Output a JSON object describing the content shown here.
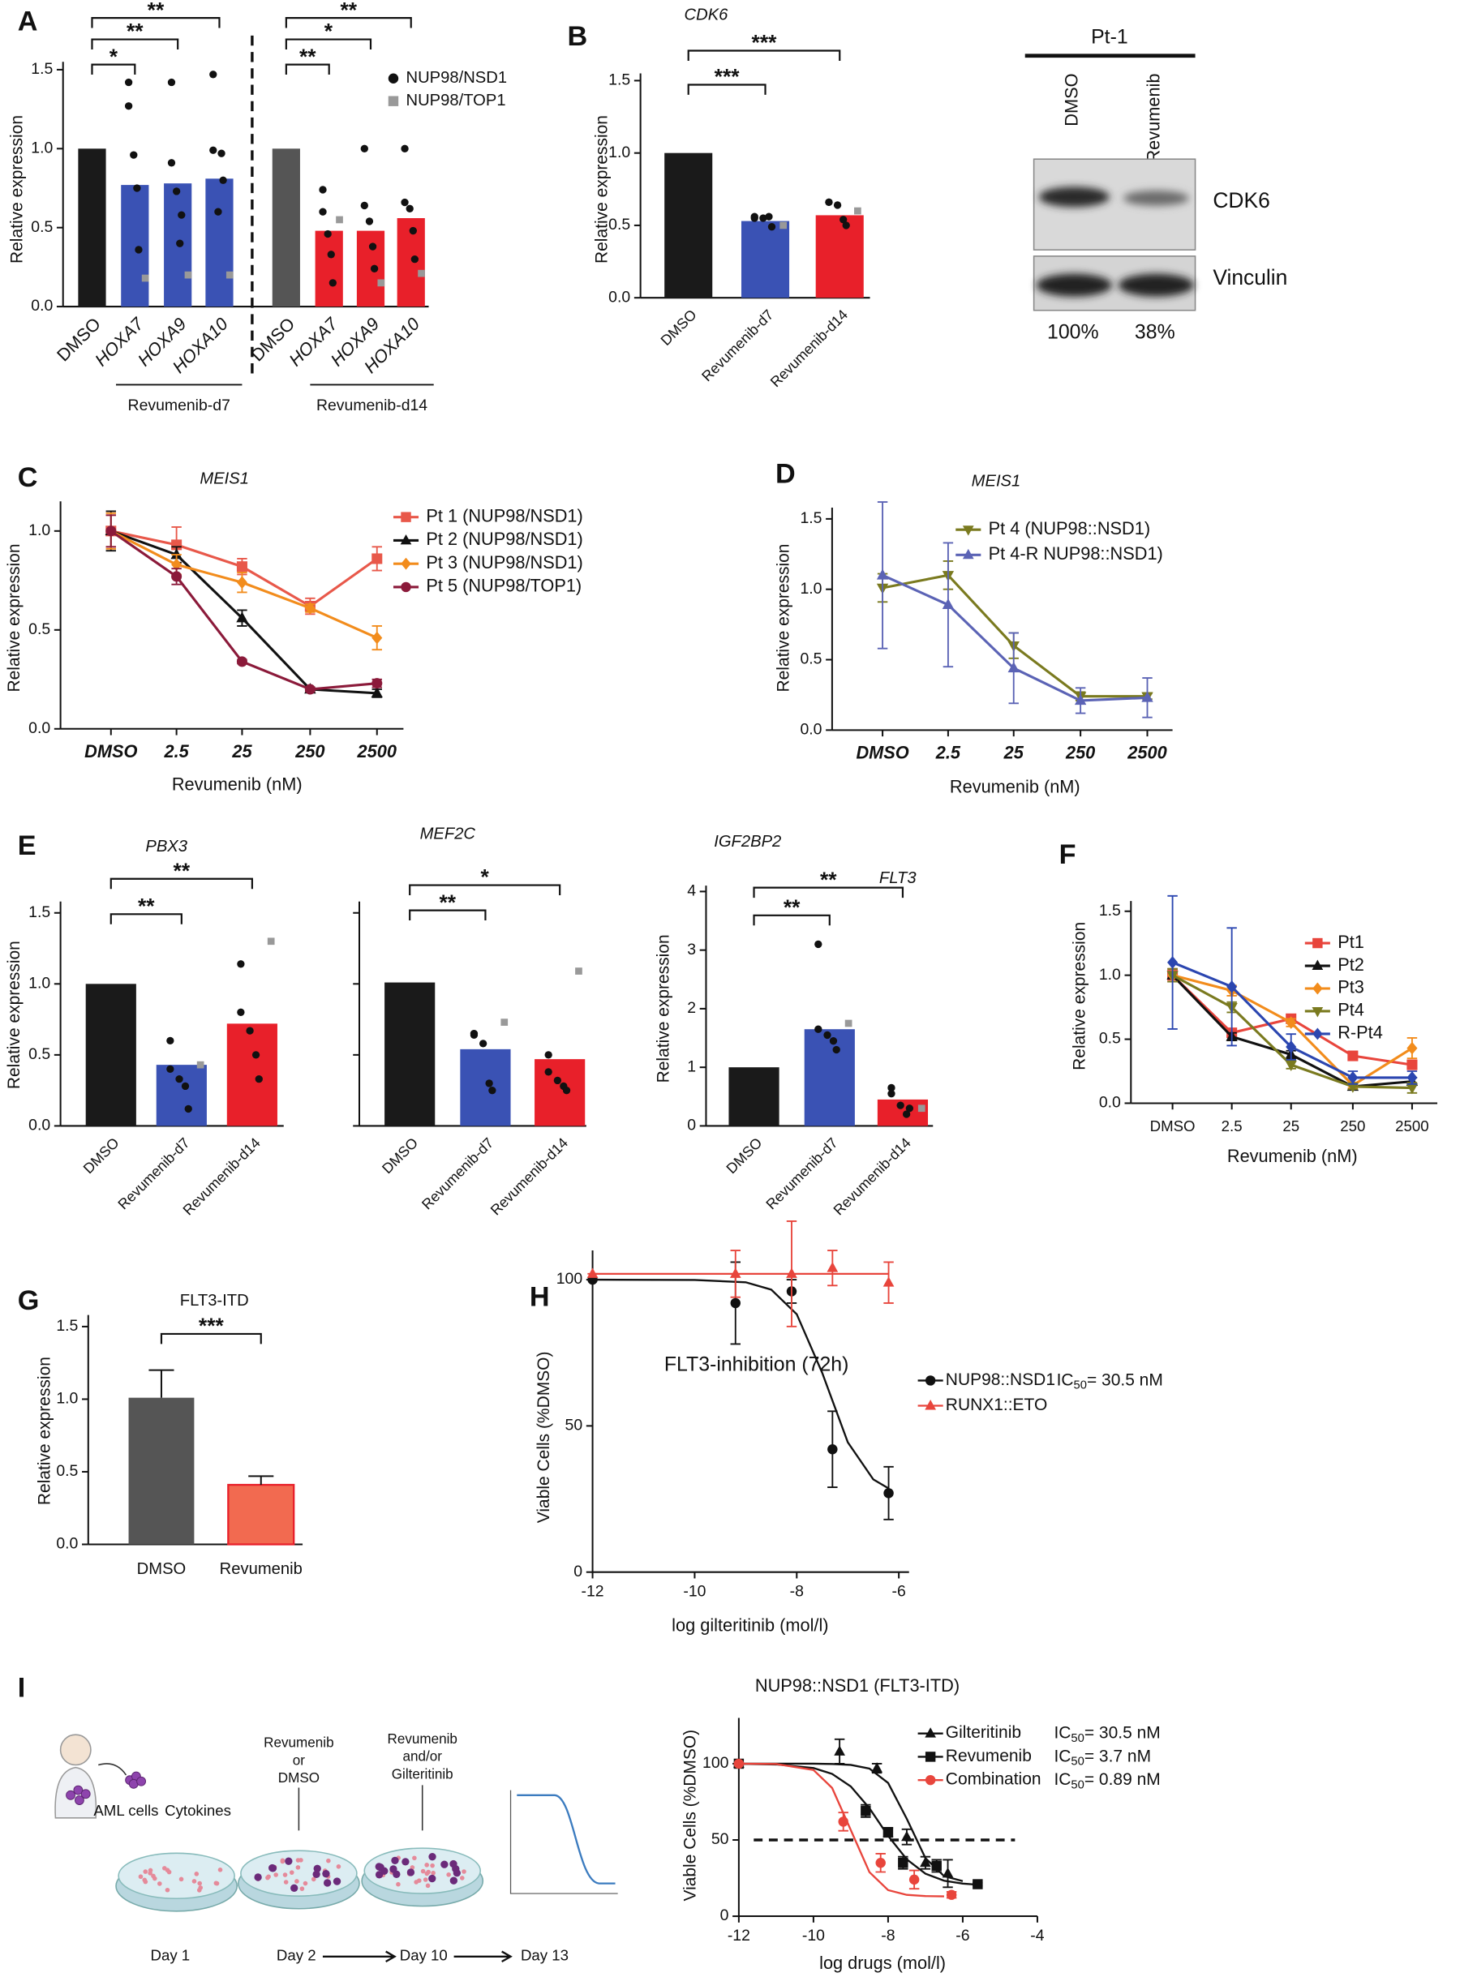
{
  "panel_labels": [
    "A",
    "B",
    "C",
    "D",
    "E",
    "F",
    "G",
    "H",
    "I"
  ],
  "blot": {
    "patient": "Pt-1",
    "lanes": [
      "DMSO",
      "Revumenib"
    ],
    "bands": [
      "CDK6",
      "Vinculin"
    ],
    "quantification": [
      "100%",
      "38%"
    ]
  },
  "schematic": {
    "cells": "AML cells",
    "cytokines": "Cytokines",
    "steps": [
      [
        "Revumenib",
        "or",
        "DMSO"
      ],
      [
        "Revumenib",
        "and/or",
        "Gilteritinib"
      ]
    ],
    "days": [
      "Day 1",
      "Day 2",
      "Day 10",
      "Day 13"
    ]
  },
  "chart_data": [
    {
      "type": "bar",
      "ylabel": "Relative expression",
      "categories": [
        "DMSO",
        "HOXA7",
        "HOXA9",
        "HOXA10",
        "DMSO",
        "HOXA7",
        "HOXA9",
        "HOXA10"
      ],
      "values": [
        1.0,
        0.77,
        0.78,
        0.81,
        1.0,
        0.48,
        0.48,
        0.56
      ],
      "colors": [
        "#1a1a1a",
        "#3a52b4",
        "#3a52b4",
        "#3a52b4",
        "#555555",
        "#e8202a",
        "#e8202a",
        "#e8202a"
      ],
      "dots": [
        {
          "name": "NUP98/NSD1",
          "color": "#111111",
          "marker": "circle",
          "values": [
            [],
            [
              1.42,
              1.27,
              0.96,
              0.75,
              0.36
            ],
            [
              1.42,
              0.91,
              0.73,
              0.4,
              0.58
            ],
            [
              1.47,
              0.99,
              0.6,
              0.97,
              0.8
            ],
            [],
            [
              0.74,
              0.6,
              0.46,
              0.33,
              0.15
            ],
            [
              1.0,
              0.64,
              0.54,
              0.38,
              0.24
            ],
            [
              1.0,
              0.66,
              0.62,
              0.48,
              0.3
            ]
          ]
        },
        {
          "name": "NUP98/TOP1",
          "color": "#999999",
          "marker": "square",
          "values": [
            [],
            [
              0.18
            ],
            [
              0.2
            ],
            [
              0.2
            ],
            [],
            [
              0.55
            ],
            [
              0.15
            ],
            [
              0.21
            ]
          ]
        }
      ],
      "groups": [
        "Revumenib-d7",
        "Revumenib-d14"
      ],
      "significance": [
        "**",
        "**",
        "*",
        "**",
        "*",
        "**"
      ],
      "ylim": [
        0,
        1.55
      ],
      "yticks": [
        {
          "value": 0,
          "label": "0.0"
        },
        0.5,
        {
          "value": 1,
          "label": "1.0"
        },
        1.5
      ]
    },
    {
      "type": "bar",
      "title": "CDK6",
      "ylabel": "Relative expression",
      "categories": [
        "DMSO",
        "Revumenib-d7",
        "Revumenib-d14"
      ],
      "values": [
        1.0,
        0.53,
        0.57
      ],
      "colors": [
        "#1a1a1a",
        "#3a52b4",
        "#e8202a"
      ],
      "dots": [
        {
          "color": "#111111",
          "marker": "circle",
          "values": [
            [],
            [
              0.56,
              0.55,
              0.55,
              0.56,
              0.49
            ],
            [
              0.66,
              0.66,
              0.64,
              0.54,
              0.5
            ]
          ]
        },
        {
          "color": "#999999",
          "marker": "square",
          "values": [
            [],
            [
              0.5
            ],
            [
              0.6
            ]
          ]
        }
      ],
      "significance": [
        "***",
        "***"
      ],
      "ylim": [
        0,
        1.55
      ],
      "yticks": [
        {
          "value": 0,
          "label": "0.0"
        },
        0.5,
        {
          "value": 1,
          "label": "1.0"
        },
        1.5
      ]
    },
    {
      "type": "line",
      "title": "MEIS1",
      "ylabel": "Relative expression",
      "xlabel": "Revumenib (nM)",
      "categories": [
        "DMSO",
        "2.5",
        "25",
        "250",
        "2500"
      ],
      "series": [
        {
          "name": "Pt 1 (NUP98/NSD1)",
          "color": "#e8584a",
          "marker": "square",
          "values": [
            1.0,
            0.93,
            0.82,
            0.62,
            0.86
          ],
          "errors": [
            0.08,
            0.09,
            0.04,
            0.04,
            0.06
          ]
        },
        {
          "name": "Pt 2 (NUP98/NSD1)",
          "color": "#111111",
          "marker": "triangle",
          "values": [
            1.0,
            0.88,
            0.56,
            0.2,
            0.18
          ],
          "errors": [
            0.1,
            0.04,
            0.04,
            0.01,
            0.02
          ]
        },
        {
          "name": "Pt 3 (NUP98/NSD1)",
          "color": "#f28c1c",
          "marker": "diamond",
          "values": [
            1.0,
            0.83,
            0.74,
            0.61,
            0.46
          ],
          "errors": [
            0.09,
            0.05,
            0.05,
            0.02,
            0.06
          ]
        },
        {
          "name": "Pt 5 (NUP98/TOP1)",
          "color": "#8b1a3a",
          "marker": "circle",
          "values": [
            1.0,
            0.77,
            0.34,
            0.2,
            0.23
          ],
          "errors": [
            0.08,
            0.04,
            0.01,
            0.01,
            0.02
          ]
        }
      ],
      "ylim": [
        0,
        1.15
      ],
      "yticks": [
        {
          "value": 0,
          "label": "0.0"
        },
        0.5,
        {
          "value": 1,
          "label": "1.0"
        }
      ]
    },
    {
      "type": "line",
      "title": "MEIS1",
      "ylabel": "Relative expression",
      "xlabel": "Revumenib (nM)",
      "categories": [
        "DMSO",
        "2.5",
        "25",
        "250",
        "2500"
      ],
      "series": [
        {
          "name": "Pt 4 (NUP98::NSD1)",
          "color": "#7a7a1f",
          "marker": "triangle-down",
          "values": [
            1.01,
            1.1,
            0.6,
            0.24,
            0.24
          ],
          "errors": [
            0.1,
            0.1,
            0.09,
            0.03,
            0.02
          ]
        },
        {
          "name": "Pt 4-R NUP98::NSD1)",
          "color": "#5b63b5",
          "marker": "triangle",
          "values": [
            1.1,
            0.89,
            0.44,
            0.21,
            0.23
          ],
          "errors": [
            0.52,
            0.44,
            0.25,
            0.09,
            0.14
          ]
        }
      ],
      "ylim": [
        0,
        1.58
      ],
      "yticks": [
        {
          "value": 0,
          "label": "0.0"
        },
        0.5,
        {
          "value": 1,
          "label": "1.0"
        },
        1.5
      ]
    },
    {
      "type": "bar",
      "title": "PBX3",
      "ylabel": "Relative expression",
      "categories": [
        "DMSO",
        "Revumenib-d7",
        "Revumenib-d14"
      ],
      "values": [
        1.0,
        0.43,
        0.72
      ],
      "colors": [
        "#1a1a1a",
        "#3a52b4",
        "#e8202a"
      ],
      "dots": [
        {
          "color": "#111111",
          "marker": "circle",
          "values": [
            [],
            [
              0.6,
              0.4,
              0.33,
              0.28,
              0.12
            ],
            [
              1.14,
              0.8,
              0.67,
              0.5,
              0.33
            ]
          ]
        },
        {
          "color": "#999999",
          "marker": "square",
          "values": [
            [],
            [
              0.43
            ],
            [
              1.3
            ]
          ]
        }
      ],
      "significance": [
        "**",
        "**"
      ],
      "ylim": [
        0,
        1.58
      ],
      "yticks": [
        {
          "value": 0,
          "label": "0.0"
        },
        0.5,
        {
          "value": 1,
          "label": "1.0"
        },
        1.5
      ]
    },
    {
      "type": "bar",
      "title": "MEF2C",
      "categories": [
        "DMSO",
        "Revumenib-d7",
        "Revumenib-d14"
      ],
      "values": [
        1.01,
        0.54,
        0.47
      ],
      "colors": [
        "#1a1a1a",
        "#3a52b4",
        "#e8202a"
      ],
      "dots": [
        {
          "color": "#111111",
          "marker": "circle",
          "values": [
            [],
            [
              0.65,
              0.64,
              0.58,
              0.3,
              0.25
            ],
            [
              0.5,
              0.38,
              0.32,
              0.28,
              0.25
            ]
          ]
        },
        {
          "color": "#999999",
          "marker": "square",
          "values": [
            [],
            [
              0.73
            ],
            [
              1.09
            ]
          ]
        }
      ],
      "significance": [
        "*",
        "**"
      ],
      "ylim": [
        0,
        1.58
      ],
      "yticks": [
        0,
        0.5,
        1,
        1.5
      ],
      "tick_labels": false
    },
    {
      "type": "bar",
      "title": "IGF2BP2",
      "ylabel": "Relative expression",
      "categories": [
        "DMSO",
        "Revumenib-d7",
        "Revumenib-d14"
      ],
      "values": [
        1.0,
        1.65,
        0.45
      ],
      "colors": [
        "#1a1a1a",
        "#3a52b4",
        "#e8202a"
      ],
      "dots": [
        {
          "color": "#111111",
          "marker": "circle",
          "values": [
            [],
            [
              3.1,
              1.65,
              1.55,
              1.45,
              1.3
            ],
            [
              0.65,
              0.55,
              0.35,
              0.2,
              0.3
            ]
          ]
        },
        {
          "color": "#999999",
          "marker": "square",
          "values": [
            [],
            [
              1.75
            ],
            [
              0.3
            ]
          ]
        }
      ],
      "significance": [
        "**",
        "**"
      ],
      "ylim": [
        0,
        4.1
      ],
      "yticks": [
        0,
        1,
        2,
        3,
        4
      ]
    },
    {
      "type": "line",
      "title": "FLT3",
      "ylabel": "Relative expression",
      "xlabel": "Revumenib (nM)",
      "categories": [
        "DMSO",
        "2.5",
        "25",
        "250",
        "2500"
      ],
      "series": [
        {
          "name": "Pt1",
          "color": "#e8453c",
          "marker": "square",
          "values": [
            1.0,
            0.55,
            0.66,
            0.37,
            0.3
          ],
          "errors": [
            0.05,
            0.03,
            0.03,
            0.02,
            0.03
          ]
        },
        {
          "name": "Pt2",
          "color": "#111111",
          "marker": "triangle",
          "values": [
            1.0,
            0.52,
            0.38,
            0.13,
            0.17
          ],
          "errors": [
            0.05,
            0.03,
            0.03,
            0.02,
            0.03
          ]
        },
        {
          "name": "Pt3",
          "color": "#f28c1c",
          "marker": "diamond",
          "values": [
            1.0,
            0.88,
            0.63,
            0.14,
            0.43
          ],
          "errors": [
            0.05,
            0.04,
            0.03,
            0.02,
            0.08
          ]
        },
        {
          "name": "Pt4",
          "color": "#7a7a1f",
          "marker": "triangle-down",
          "values": [
            1.0,
            0.75,
            0.3,
            0.13,
            0.12
          ],
          "errors": [
            0.05,
            0.04,
            0.03,
            0.02,
            0.04
          ]
        },
        {
          "name": "R-Pt4",
          "color": "#2b46b0",
          "marker": "diamond",
          "values": [
            1.1,
            0.91,
            0.44,
            0.2,
            0.2
          ],
          "errors": [
            0.52,
            0.46,
            0.1,
            0.05,
            0.05
          ]
        }
      ],
      "ylim": [
        0,
        1.58
      ],
      "yticks": [
        {
          "value": 0,
          "label": "0.0"
        },
        0.5,
        {
          "value": 1,
          "label": "1.0"
        },
        1.5
      ]
    },
    {
      "type": "bar",
      "title": "FLT3-ITD",
      "ylabel": "Relative expression",
      "categories": [
        "DMSO",
        "Revumenib"
      ],
      "values": [
        1.01,
        0.41
      ],
      "errors": [
        0.19,
        0.06
      ],
      "colors": [
        "#555555",
        "#f26a50"
      ],
      "significance": [
        "***"
      ],
      "ylim": [
        0,
        1.58
      ],
      "yticks": [
        {
          "value": 0,
          "label": "0.0"
        },
        0.5,
        {
          "value": 1,
          "label": "1.0"
        },
        1.5
      ]
    },
    {
      "type": "scatter",
      "title": "FLT3-inhibition (72h)",
      "ylabel": "Viable Cells (%DMSO)",
      "xlabel": "log gilteritinib (mol/l)",
      "series": [
        {
          "name": "NUP98::NSD1",
          "ic50_label": [
            "IC",
            "50",
            "= 30.5 nM"
          ],
          "color": "#111111",
          "marker": "circle",
          "x": [
            -12,
            -9.2,
            -8.1,
            -7.3,
            -6.2
          ],
          "values": [
            100,
            92,
            96,
            42,
            27
          ],
          "errors": [
            0,
            14,
            4,
            13,
            9
          ],
          "fit": {
            "x": [
              -12,
              -10,
              -9,
              -8.5,
              -8,
              -7.5,
              -7,
              -6.5,
              -6.2
            ],
            "values": [
              100,
              99.9,
              99.1,
              96.6,
              88.2,
              68.1,
              44.4,
              31.7,
              28.6
            ]
          }
        },
        {
          "name": "RUNX1::ETO",
          "color": "#e8453c",
          "marker": "triangle",
          "x": [
            -12,
            -9.2,
            -8.1,
            -7.3,
            -6.2
          ],
          "values": [
            102,
            102,
            102,
            104,
            99
          ],
          "errors": [
            0,
            8,
            18,
            6,
            7
          ],
          "fit": {
            "x": [
              -12,
              -6.2
            ],
            "values": [
              102,
              102
            ]
          }
        }
      ],
      "xlim": [
        -12,
        -5.8
      ],
      "xticks": [
        -12,
        -10,
        -8,
        -6
      ],
      "ylim": [
        0,
        110
      ],
      "yticks": [
        0,
        50,
        100
      ]
    },
    {
      "type": "scatter",
      "title": "NUP98::NSD1 (FLT3-ITD)",
      "ylabel": "Viable Cells (%DMSO)",
      "xlabel": "log drugs (mol/l)",
      "series": [
        {
          "name": "Gilteritinib",
          "ic50_label": [
            "IC",
            "50",
            "= 30.5 nM"
          ],
          "color": "#111111",
          "marker": "triangle",
          "x": [
            -12,
            -9.3,
            -8.3,
            -7.5,
            -7.0,
            -6.4
          ],
          "values": [
            100,
            108,
            97,
            52,
            35,
            28
          ],
          "errors": [
            0,
            8,
            3,
            5,
            4,
            9
          ],
          "fit": {
            "x": [
              -12,
              -11,
              -10,
              -9.5,
              -9,
              -8.5,
              -8,
              -7.5,
              -7,
              -6.5,
              -6
            ],
            "values": [
              100,
              100,
              100,
              99.8,
              99.2,
              96.8,
              87.4,
              63.9,
              38.1,
              26.3,
              23.0
            ]
          }
        },
        {
          "name": "Revumenib",
          "ic50_label": [
            "IC",
            "50",
            "= 3.7 nM"
          ],
          "color": "#111111",
          "marker": "square",
          "x": [
            -12,
            -8.6,
            -8.0,
            -7.6,
            -6.7,
            -5.6
          ],
          "values": [
            100,
            69,
            55,
            35,
            33,
            21
          ],
          "errors": [
            0,
            4,
            3,
            4,
            4,
            1
          ],
          "fit": {
            "x": [
              -12,
              -11,
              -10,
              -9.5,
              -9,
              -8.5,
              -8,
              -7.5,
              -7,
              -6.5,
              -6,
              -5.5
            ],
            "values": [
              99.9,
              99.5,
              97.2,
              93.3,
              85.1,
              70.8,
              52.7,
              37.3,
              27.9,
              23.3,
              21.4,
              20.5
            ]
          }
        },
        {
          "name": "Combination",
          "ic50_label": [
            "IC",
            "50",
            "= 0.89 nM"
          ],
          "color": "#e8453c",
          "marker": "circle",
          "x": [
            -12,
            -9.2,
            -8.2,
            -7.3,
            -6.3
          ],
          "values": [
            100,
            62,
            35,
            24,
            14
          ],
          "errors": [
            0,
            6,
            6,
            6,
            2
          ],
          "fit": {
            "x": [
              -12,
              -11,
              -10,
              -9.5,
              -9,
              -8.5,
              -8,
              -7.5,
              -7,
              -6.5
            ],
            "values": [
              100,
              99.8,
              95.9,
              84.1,
              56.5,
              28.9,
              17.1,
              14.0,
              13.2,
              13.0
            ]
          }
        }
      ],
      "reference_line": 50,
      "xlim": [
        -12,
        -4
      ],
      "xticks": [
        -12,
        -10,
        -8,
        -6,
        -4
      ],
      "ylim": [
        0,
        130
      ],
      "yticks": [
        0,
        50,
        100
      ]
    }
  ]
}
